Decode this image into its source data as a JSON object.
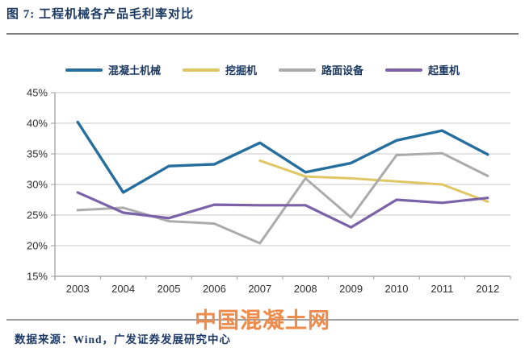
{
  "figure": {
    "title": "图 7:  工程机械各产品毛利率对比",
    "watermark": "中国混凝土网",
    "source_note": "数据来源：Wind，广发证券发展研究中心"
  },
  "colors": {
    "title_text": "#1C3A63",
    "watermark": "#EE8B4A",
    "grid": "#C8C8C8",
    "axis": "#9C9C9C",
    "tick_text": "#2F2F2F"
  },
  "chart_data": {
    "type": "line",
    "title": "工程机械各产品毛利率对比",
    "categories": [
      "2003",
      "2004",
      "2005",
      "2006",
      "2007",
      "2008",
      "2009",
      "2010",
      "2011",
      "2012"
    ],
    "series": [
      {
        "name": "混凝土机械",
        "color": "#256E9E",
        "values": [
          40.2,
          28.7,
          33.0,
          33.3,
          36.8,
          32.0,
          33.5,
          37.2,
          38.8,
          34.9
        ]
      },
      {
        "name": "挖掘机",
        "color": "#DFC765",
        "values": [
          null,
          null,
          null,
          null,
          33.9,
          31.3,
          31.0,
          30.5,
          30.0,
          27.2
        ]
      },
      {
        "name": "路面设备",
        "color": "#ABABAB",
        "values": [
          25.8,
          26.2,
          24.0,
          23.6,
          20.4,
          31.0,
          24.6,
          34.8,
          35.1,
          31.4
        ]
      },
      {
        "name": "起重机",
        "color": "#7B62A8",
        "values": [
          28.7,
          25.4,
          24.5,
          26.7,
          26.6,
          26.6,
          23.0,
          27.5,
          27.0,
          27.8
        ]
      }
    ],
    "xlabel": "",
    "ylabel": "",
    "ylim": [
      15,
      45
    ],
    "y_ticks": [
      15,
      20,
      25,
      30,
      35,
      40,
      45
    ],
    "ytick_format": "percent",
    "legend_position": "top",
    "grid": "horizontal"
  }
}
